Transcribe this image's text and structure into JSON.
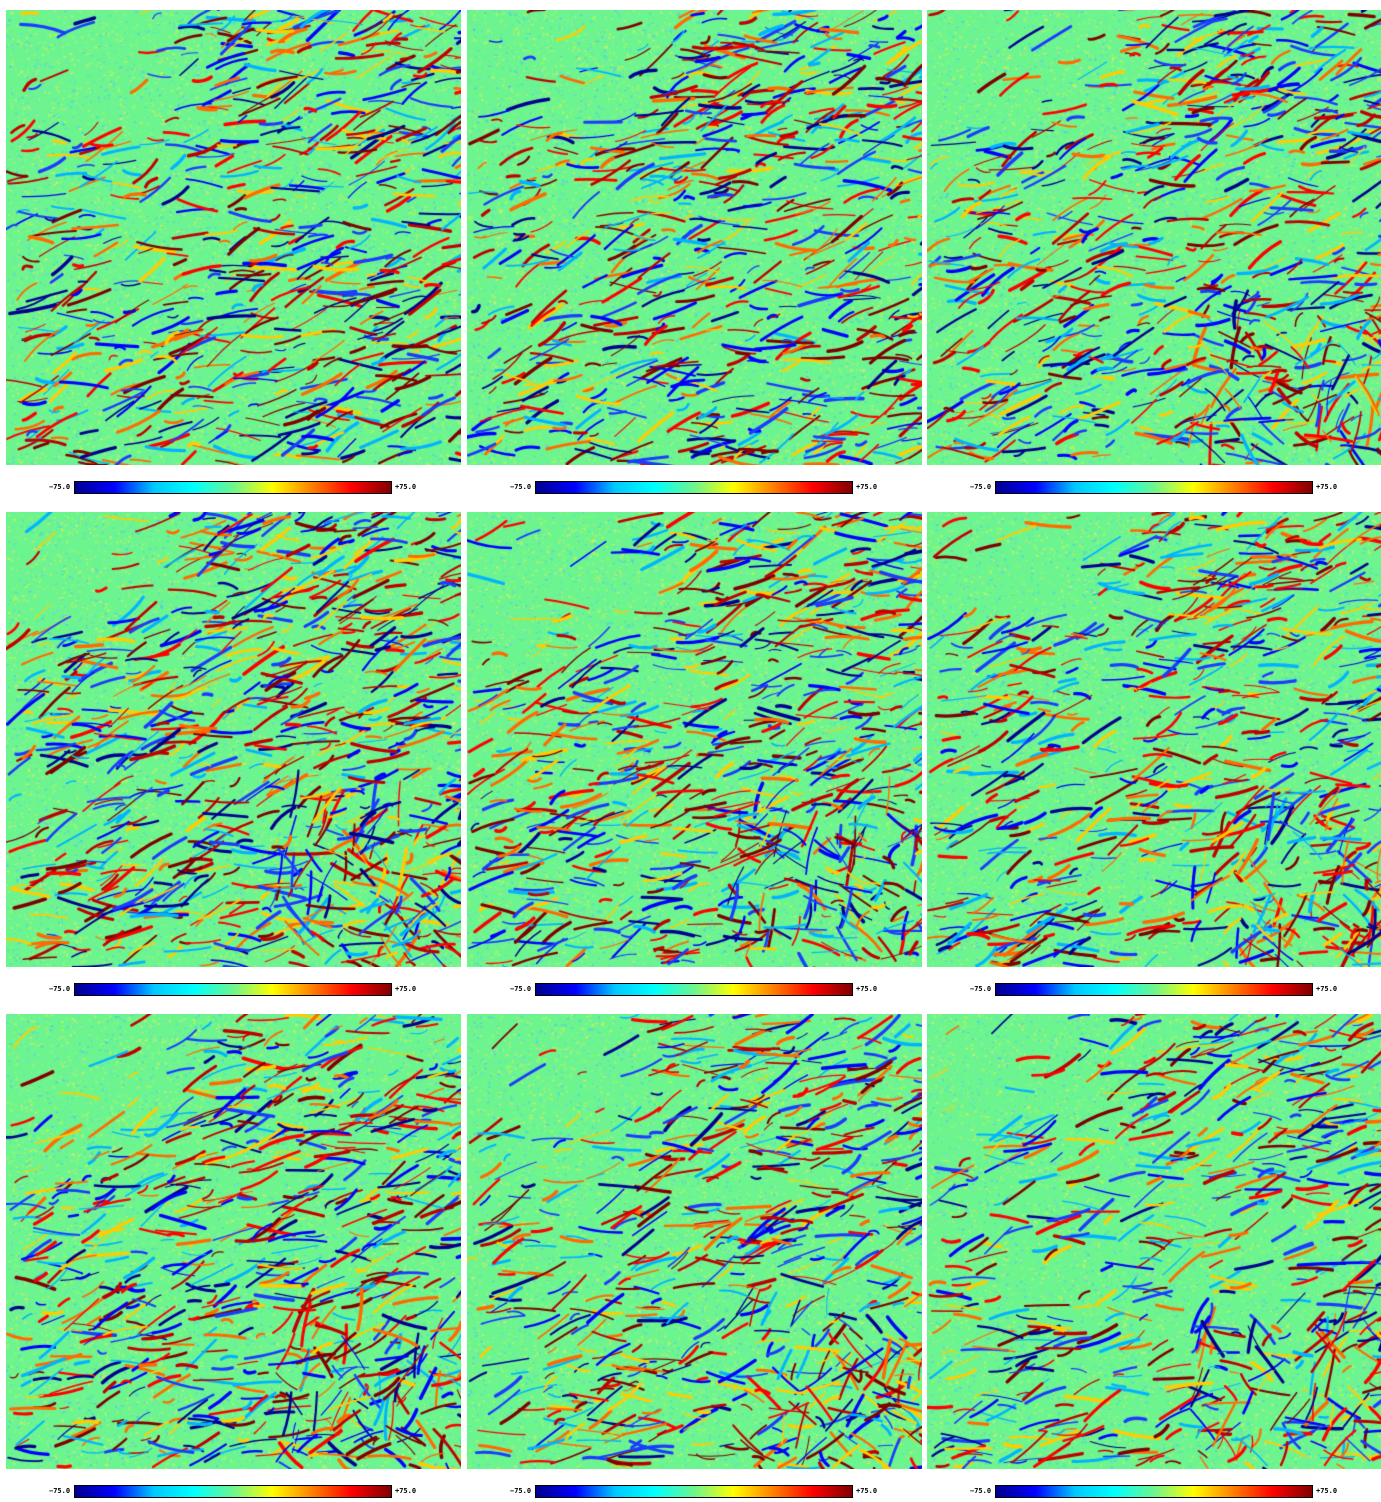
{
  "colormap": {
    "name": "jet",
    "min_label": "−75.0",
    "max_label": "+75.0",
    "stops": [
      "#00008f",
      "#0000ff",
      "#00c8ff",
      "#00ffff",
      "#6cf58e",
      "#ffff00",
      "#ff8000",
      "#ff0000",
      "#800000"
    ]
  },
  "panels": [
    {
      "id": "p1",
      "seed": 11,
      "dense_region": "top-right",
      "density": 0.9
    },
    {
      "id": "p2",
      "seed": 23,
      "dense_region": "top-right",
      "density": 0.9
    },
    {
      "id": "p3",
      "seed": 37,
      "dense_region": "bottom-right",
      "density": 0.9
    },
    {
      "id": "p4",
      "seed": 41,
      "dense_region": "bottom-right",
      "density": 1.0
    },
    {
      "id": "p5",
      "seed": 53,
      "dense_region": "bottom-right",
      "density": 0.9
    },
    {
      "id": "p6",
      "seed": 67,
      "dense_region": "bottom-right",
      "density": 0.85
    },
    {
      "id": "p7",
      "seed": 71,
      "dense_region": "bottom-right",
      "density": 0.9
    },
    {
      "id": "p8",
      "seed": 83,
      "dense_region": "bottom-right",
      "density": 0.8
    },
    {
      "id": "p9",
      "seed": 97,
      "dense_region": "bottom-right",
      "density": 0.7
    }
  ]
}
